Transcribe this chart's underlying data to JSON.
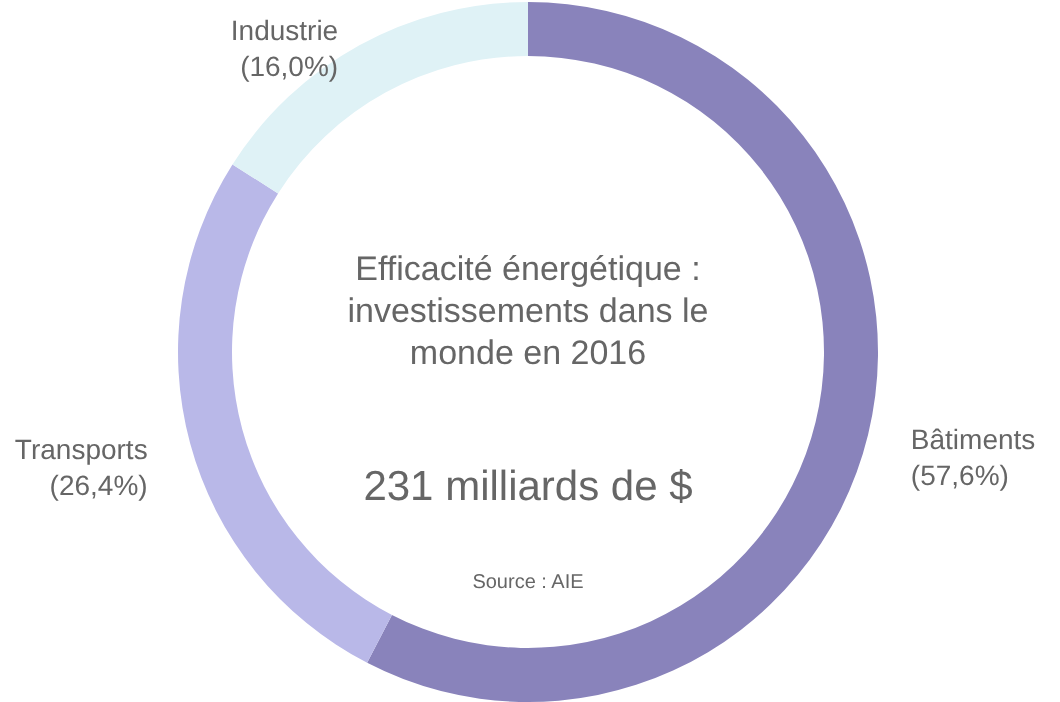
{
  "chart_data": {
    "type": "donut",
    "title": "Efficacité énergétique : investissements dans le monde en 2016",
    "subtitle": "231 milliards de $",
    "annotations": [
      "Source : AIE"
    ],
    "categories": [
      "Bâtiments",
      "Transports",
      "Industrie"
    ],
    "values": [
      57.6,
      26.4,
      16.0
    ],
    "value_labels": [
      "(57,6%)",
      "(26,4%)",
      "(16,0%)"
    ],
    "colors": [
      "#8983bb",
      "#b9b8e8",
      "#dff2f6"
    ],
    "legend": false
  }
}
